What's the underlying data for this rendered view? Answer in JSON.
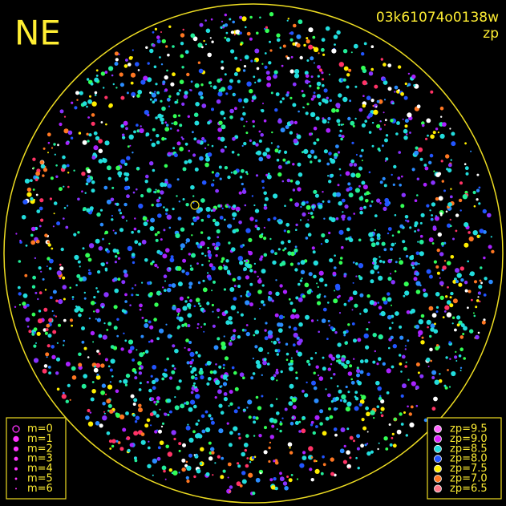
{
  "header": {
    "direction": "NE",
    "frame_id": "03k61074o0138w",
    "mode": "zp"
  },
  "legend_magnitude": {
    "color": "#ff33ff",
    "items": [
      "m=0",
      "m=1",
      "m=2",
      "m=3",
      "m=4",
      "m=5",
      "m=6"
    ]
  },
  "legend_zp": {
    "items": [
      {
        "label": "zp=9.5",
        "color": "#ff66ff"
      },
      {
        "label": "zp=9.0",
        "color": "#dd22ff"
      },
      {
        "label": "zp=8.5",
        "color": "#22dddd"
      },
      {
        "label": "zp=8.0",
        "color": "#2255ff"
      },
      {
        "label": "zp=7.5",
        "color": "#ffee00"
      },
      {
        "label": "zp=7.0",
        "color": "#ff7722"
      },
      {
        "label": "zp=6.5",
        "color": "#ff7788"
      }
    ]
  }
}
